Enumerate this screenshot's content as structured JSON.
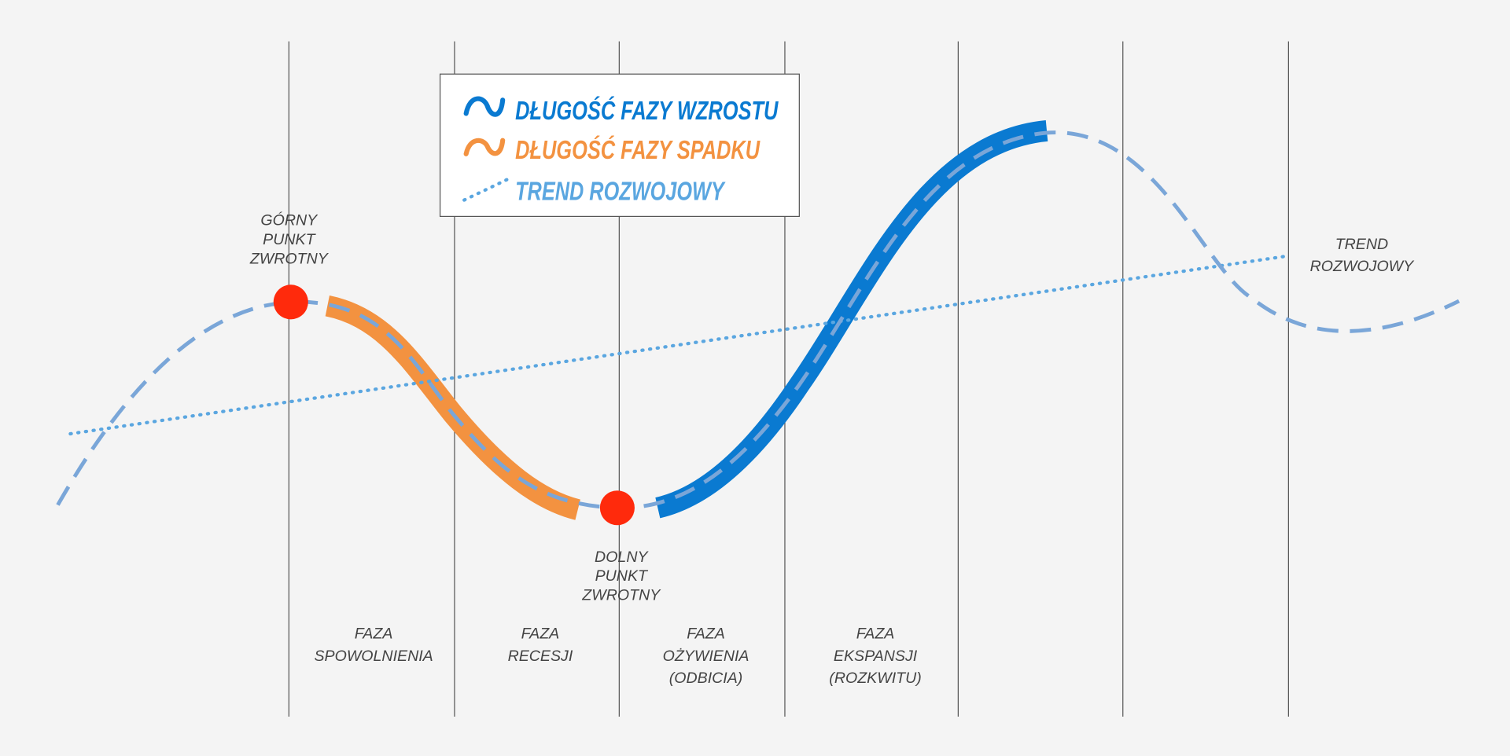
{
  "legend": [
    {
      "label": "DŁUGOŚĆ FAZY WZROSTU"
    },
    {
      "label": "DŁUGOŚĆ FAZY SPADKU"
    },
    {
      "label": "TREND ROZWOJOWY"
    }
  ],
  "turning_points": {
    "upper": [
      "GÓRNY",
      "PUNKT",
      "ZWROTNY"
    ],
    "lower": [
      "DOLNY",
      "PUNKT",
      "ZWROTNY"
    ]
  },
  "phases": [
    [
      "FAZA",
      "SPOWOLNIENIA"
    ],
    [
      "FAZA",
      "RECESJI"
    ],
    [
      "FAZA",
      "OŻYWIENIA",
      "(ODBICIA)"
    ],
    [
      "FAZA",
      "EKSPANSJI",
      "(ROZKWITU)"
    ]
  ],
  "trend_label": [
    "TREND",
    "ROZWOJOWY"
  ]
}
